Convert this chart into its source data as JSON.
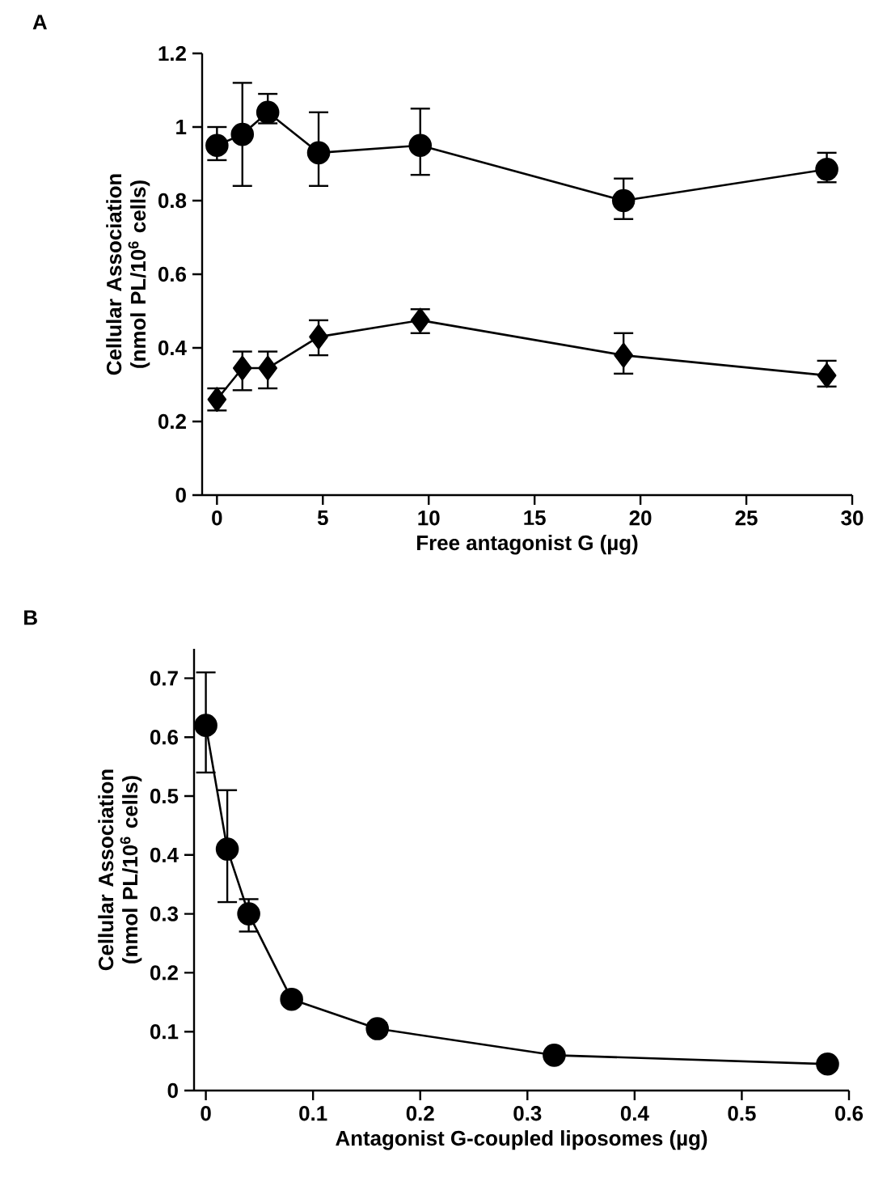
{
  "chart_data": [
    {
      "type": "line",
      "title": "A",
      "xlabel": "Free antagonist G (µg)",
      "ylabel": "Cellular Association (nmol PL/10$^{6}$ cells)",
      "xlim": [
        -0.7,
        30
      ],
      "ylim": [
        0,
        1.2
      ],
      "xticks": [
        0,
        5,
        10,
        15,
        20,
        25,
        30
      ],
      "yticks": [
        0,
        0.2,
        0.4,
        0.6,
        0.8,
        1,
        1.2
      ],
      "series": [
        {
          "color": "#000000",
          "marker": "circle",
          "x": [
            0,
            1.2,
            2.4,
            4.8,
            9.6,
            19.2,
            28.8
          ],
          "values": [
            0.95,
            0.98,
            1.04,
            0.93,
            0.95,
            0.8,
            0.885
          ],
          "errors": [
            [
              0.91,
              1.0
            ],
            [
              0.84,
              1.12
            ],
            [
              1.01,
              1.09
            ],
            [
              0.84,
              1.04
            ],
            [
              0.87,
              1.05
            ],
            [
              0.75,
              0.86
            ],
            [
              0.85,
              0.93
            ]
          ]
        },
        {
          "color": "#000000",
          "marker": "diamond",
          "x": [
            0,
            1.2,
            2.4,
            4.8,
            9.6,
            19.2,
            28.8
          ],
          "values": [
            0.26,
            0.345,
            0.345,
            0.43,
            0.475,
            0.38,
            0.325
          ],
          "errors": [
            [
              0.23,
              0.29
            ],
            [
              0.285,
              0.39
            ],
            [
              0.29,
              0.39
            ],
            [
              0.38,
              0.475
            ],
            [
              0.44,
              0.505
            ],
            [
              0.33,
              0.44
            ],
            [
              0.295,
              0.365
            ]
          ]
        }
      ]
    },
    {
      "type": "line",
      "title": "B",
      "xlabel": "Antagonist G-coupled liposomes (µg)",
      "ylabel": "Cellular Association (nmol PL/10$^{6}$ cells)",
      "xlim": [
        -0.011,
        0.6
      ],
      "ylim": [
        0,
        0.75
      ],
      "xticks": [
        0,
        0.1,
        0.2,
        0.3,
        0.4,
        0.5,
        0.6
      ],
      "yticks": [
        0,
        0.1,
        0.2,
        0.3,
        0.4,
        0.5,
        0.6,
        0.7
      ],
      "series": [
        {
          "color": "#000000",
          "marker": "circle",
          "x": [
            0,
            0.02,
            0.04,
            0.08,
            0.16,
            0.325,
            0.58
          ],
          "values": [
            0.62,
            0.41,
            0.3,
            0.155,
            0.105,
            0.06,
            0.045
          ],
          "errors": [
            [
              0.54,
              0.71
            ],
            [
              0.32,
              0.51
            ],
            [
              0.27,
              0.325
            ],
            null,
            [
              0.095,
              0.115
            ],
            null,
            null
          ]
        }
      ]
    }
  ]
}
